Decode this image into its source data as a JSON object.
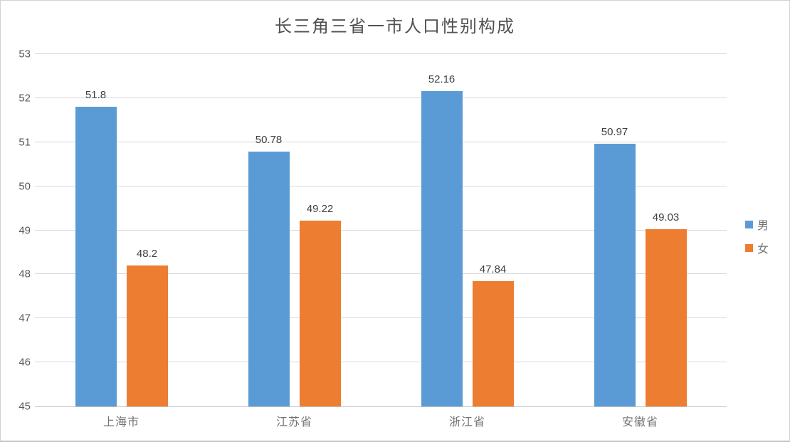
{
  "chart_data": {
    "type": "bar",
    "title": "长三角三省一市人口性别构成",
    "categories": [
      "上海市",
      "江苏省",
      "浙江省",
      "安徽省"
    ],
    "series": [
      {
        "name": "男",
        "color": "#5B9BD5",
        "values": [
          51.8,
          50.78,
          52.16,
          50.97
        ],
        "labels": [
          "51.8",
          "50.78",
          "52.16",
          "50.97"
        ]
      },
      {
        "name": "女",
        "color": "#ED7D31",
        "values": [
          48.2,
          49.22,
          47.84,
          49.03
        ],
        "labels": [
          "48.2",
          "49.22",
          "47.84",
          "49.03"
        ]
      }
    ],
    "y_axis": {
      "min": 45,
      "max": 53,
      "step": 1,
      "ticks": [
        "45",
        "46",
        "47",
        "48",
        "49",
        "50",
        "51",
        "52",
        "53"
      ]
    },
    "xlabel": "",
    "ylabel": "",
    "grid": true,
    "legend_position": "right",
    "colors": {
      "gridline": "#D9D9D9",
      "axis_line": "#C3C3C3",
      "tick_text": "#595959",
      "data_label_text": "#404040",
      "title_text": "#515151"
    }
  }
}
